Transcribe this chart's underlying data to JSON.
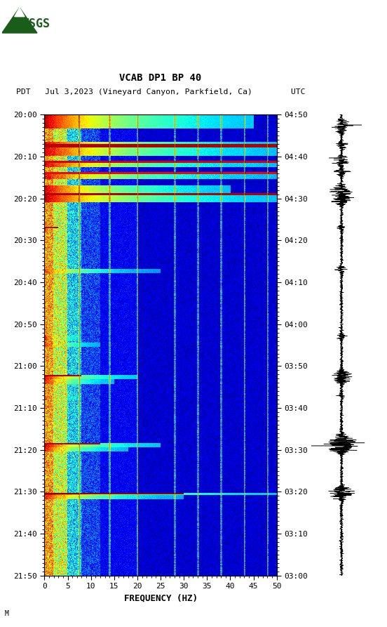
{
  "title_line1": "VCAB DP1 BP 40",
  "title_line2": "PDT   Jul 3,2023 (Vineyard Canyon, Parkfield, Ca)        UTC",
  "xlabel": "FREQUENCY (HZ)",
  "freq_min": 0,
  "freq_max": 50,
  "freq_ticks": [
    0,
    5,
    10,
    15,
    20,
    25,
    30,
    35,
    40,
    45,
    50
  ],
  "left_time_labels": [
    "20:00",
    "20:10",
    "20:20",
    "20:30",
    "20:40",
    "20:50",
    "21:00",
    "21:10",
    "21:20",
    "21:30",
    "21:40",
    "21:50"
  ],
  "right_time_labels": [
    "03:00",
    "03:10",
    "03:20",
    "03:30",
    "03:40",
    "03:50",
    "04:00",
    "04:10",
    "04:20",
    "04:30",
    "04:40",
    "04:50"
  ],
  "fig_bg": "#ffffff",
  "vline_freqs": [
    7.5,
    14.0,
    20.0,
    28.0,
    33.0,
    38.0,
    43.0,
    48.0
  ],
  "vline_color": "#9a8c3a",
  "annotation": "M",
  "n_time": 700,
  "n_freq": 400
}
